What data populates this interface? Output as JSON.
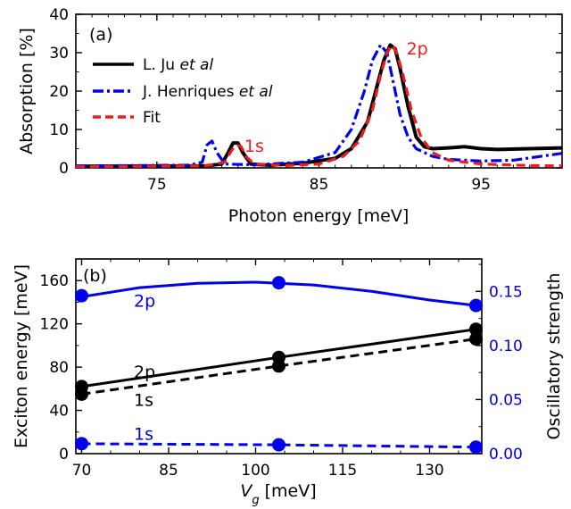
{
  "chart_data": [
    {
      "type": "line",
      "panel_label": "(a)",
      "xlabel": "Photon energy [meV]",
      "ylabel": "Absorption [%]",
      "xlim": [
        70,
        100
      ],
      "ylim": [
        0,
        40
      ],
      "xticks": [
        75,
        85,
        95
      ],
      "yticks": [
        0,
        10,
        20,
        30,
        40
      ],
      "legend_position": "upper-left",
      "series": [
        {
          "name": "L. Ju ",
          "name_italic": "et al",
          "color": "#000000",
          "dash": "solid",
          "x": [
            70,
            78,
            79,
            79.4,
            79.7,
            80,
            80.3,
            80.8,
            82,
            84,
            86,
            87,
            88,
            88.5,
            89,
            89.4,
            89.7,
            90,
            90.5,
            91,
            91.5,
            92,
            93,
            94,
            95,
            96,
            98,
            100
          ],
          "y": [
            0.4,
            0.5,
            1.0,
            4.0,
            6.5,
            6.5,
            4.0,
            1.0,
            0.7,
            1.2,
            2.5,
            5.0,
            12.0,
            20.0,
            28.0,
            32.0,
            31.0,
            26.0,
            16.0,
            8.0,
            5.5,
            5.0,
            5.2,
            5.5,
            5.0,
            4.8,
            5.0,
            5.2
          ]
        },
        {
          "name": "J. Henriques ",
          "name_italic": "et al",
          "color": "#0000ee",
          "dash": "dashdot",
          "x": [
            70,
            77,
            77.8,
            78.1,
            78.4,
            78.7,
            79.2,
            81,
            84,
            86,
            87,
            87.8,
            88.3,
            88.8,
            89.2,
            89.6,
            90,
            90.5,
            91,
            92,
            93,
            95,
            97,
            100
          ],
          "y": [
            0.5,
            0.7,
            1.5,
            6.0,
            7.0,
            4.0,
            1.0,
            0.8,
            1.5,
            4.0,
            10.0,
            20.0,
            28.0,
            32.0,
            30.0,
            22.0,
            14.0,
            8.0,
            5.0,
            3.0,
            2.2,
            1.8,
            2.0,
            3.8
          ]
        },
        {
          "name": "Fit",
          "name_italic": "",
          "color": "#ee1c1c",
          "dash": "dash",
          "x": [
            70,
            78,
            79.2,
            79.6,
            79.9,
            80.2,
            80.5,
            81,
            83,
            85,
            86.5,
            87.5,
            88.3,
            88.8,
            89.2,
            89.5,
            89.8,
            90.2,
            90.7,
            91.3,
            92,
            93,
            95,
            98,
            100
          ],
          "y": [
            0.3,
            0.5,
            1.5,
            4.5,
            6.0,
            5.5,
            3.0,
            1.0,
            0.6,
            1.0,
            3.0,
            7.0,
            15.0,
            24.0,
            30.0,
            32.0,
            30.0,
            24.0,
            15.0,
            8.0,
            4.0,
            2.0,
            1.0,
            0.6,
            0.5
          ]
        }
      ],
      "annotations": [
        {
          "text": "1s",
          "x": 80.4,
          "y": 4.2,
          "color": "#ee1c1c"
        },
        {
          "text": "2p",
          "x": 90.4,
          "y": 29.5,
          "color": "#ee1c1c"
        }
      ]
    },
    {
      "type": "line",
      "panel_label": "(b)",
      "xlabel_main": "V",
      "xlabel_sub": "g",
      "xlabel_rest": " [meV]",
      "ylabel": "Exciton energy [meV]",
      "ylabel_right": "Oscillatory strength",
      "xlim": [
        69,
        139
      ],
      "ylim": [
        0,
        180
      ],
      "ylim_right": [
        0,
        0.18
      ],
      "xticks": [
        70,
        85,
        100,
        115,
        130
      ],
      "yticks": [
        0,
        40,
        80,
        120,
        160
      ],
      "yticks_right": [
        0.0,
        0.05,
        0.1,
        0.15
      ],
      "yticks_right_labels": [
        "0.00",
        "0.05",
        "0.10",
        "0.15"
      ],
      "series": [
        {
          "name": "2p",
          "axis": "left",
          "color": "#000000",
          "dash": "solid",
          "x": [
            70,
            104,
            138
          ],
          "y": [
            62,
            89,
            115
          ],
          "markers": [
            [
              70,
              62
            ],
            [
              104,
              89
            ],
            [
              138,
              115
            ]
          ]
        },
        {
          "name": "1s",
          "axis": "left",
          "color": "#000000",
          "dash": "dash",
          "x": [
            70,
            104,
            138
          ],
          "y": [
            55,
            81,
            106
          ],
          "markers": [
            [
              70,
              55
            ],
            [
              104,
              81
            ],
            [
              138,
              106
            ]
          ]
        },
        {
          "name": "2p",
          "axis": "right",
          "color": "#0000ee",
          "dash": "solid",
          "x": [
            70,
            80,
            90,
            100,
            110,
            120,
            130,
            138
          ],
          "y": [
            0.145,
            0.1535,
            0.1575,
            0.1585,
            0.156,
            0.15,
            0.142,
            0.137
          ],
          "markers": [
            [
              70,
              0.146
            ],
            [
              104,
              0.158
            ],
            [
              138,
              0.137
            ]
          ]
        },
        {
          "name": "1s",
          "axis": "right",
          "color": "#0000ee",
          "dash": "dash",
          "x": [
            70,
            104,
            138
          ],
          "y": [
            0.0092,
            0.0082,
            0.006
          ],
          "markers": [
            [
              70,
              0.0092
            ],
            [
              104,
              0.0082
            ],
            [
              138,
              0.006
            ]
          ]
        }
      ],
      "annotations": [
        {
          "text": "2p",
          "x": 79,
          "y": 136,
          "color": "#0000ee"
        },
        {
          "text": "2p",
          "x": 79,
          "y": 70,
          "color": "#000000"
        },
        {
          "text": "1s",
          "x": 79,
          "y": 44,
          "color": "#000000"
        },
        {
          "text": "1s",
          "x": 79,
          "y": 13,
          "color": "#0000ee"
        }
      ]
    }
  ]
}
